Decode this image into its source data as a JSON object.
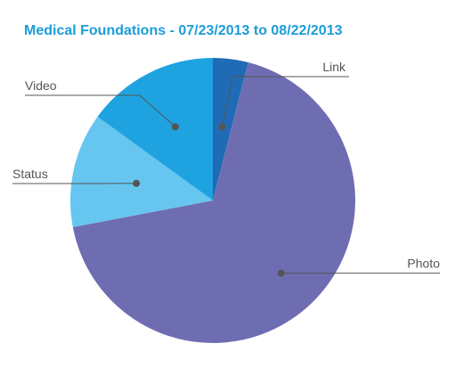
{
  "title": "Medical Foundations - 07/23/2013 to 08/22/2013",
  "chart_data": {
    "type": "pie",
    "title": "Medical Foundations - 07/23/2013 to 08/22/2013",
    "legend": "none (leader-line labels)",
    "slices": [
      {
        "label": "Link",
        "value": 4,
        "color": "#1f6bb5"
      },
      {
        "label": "Photo",
        "value": 68,
        "color": "#6f6db2"
      },
      {
        "label": "Status",
        "value": 13,
        "color": "#66c6f0"
      },
      {
        "label": "Video",
        "value": 15,
        "color": "#1ea3e0"
      }
    ]
  }
}
